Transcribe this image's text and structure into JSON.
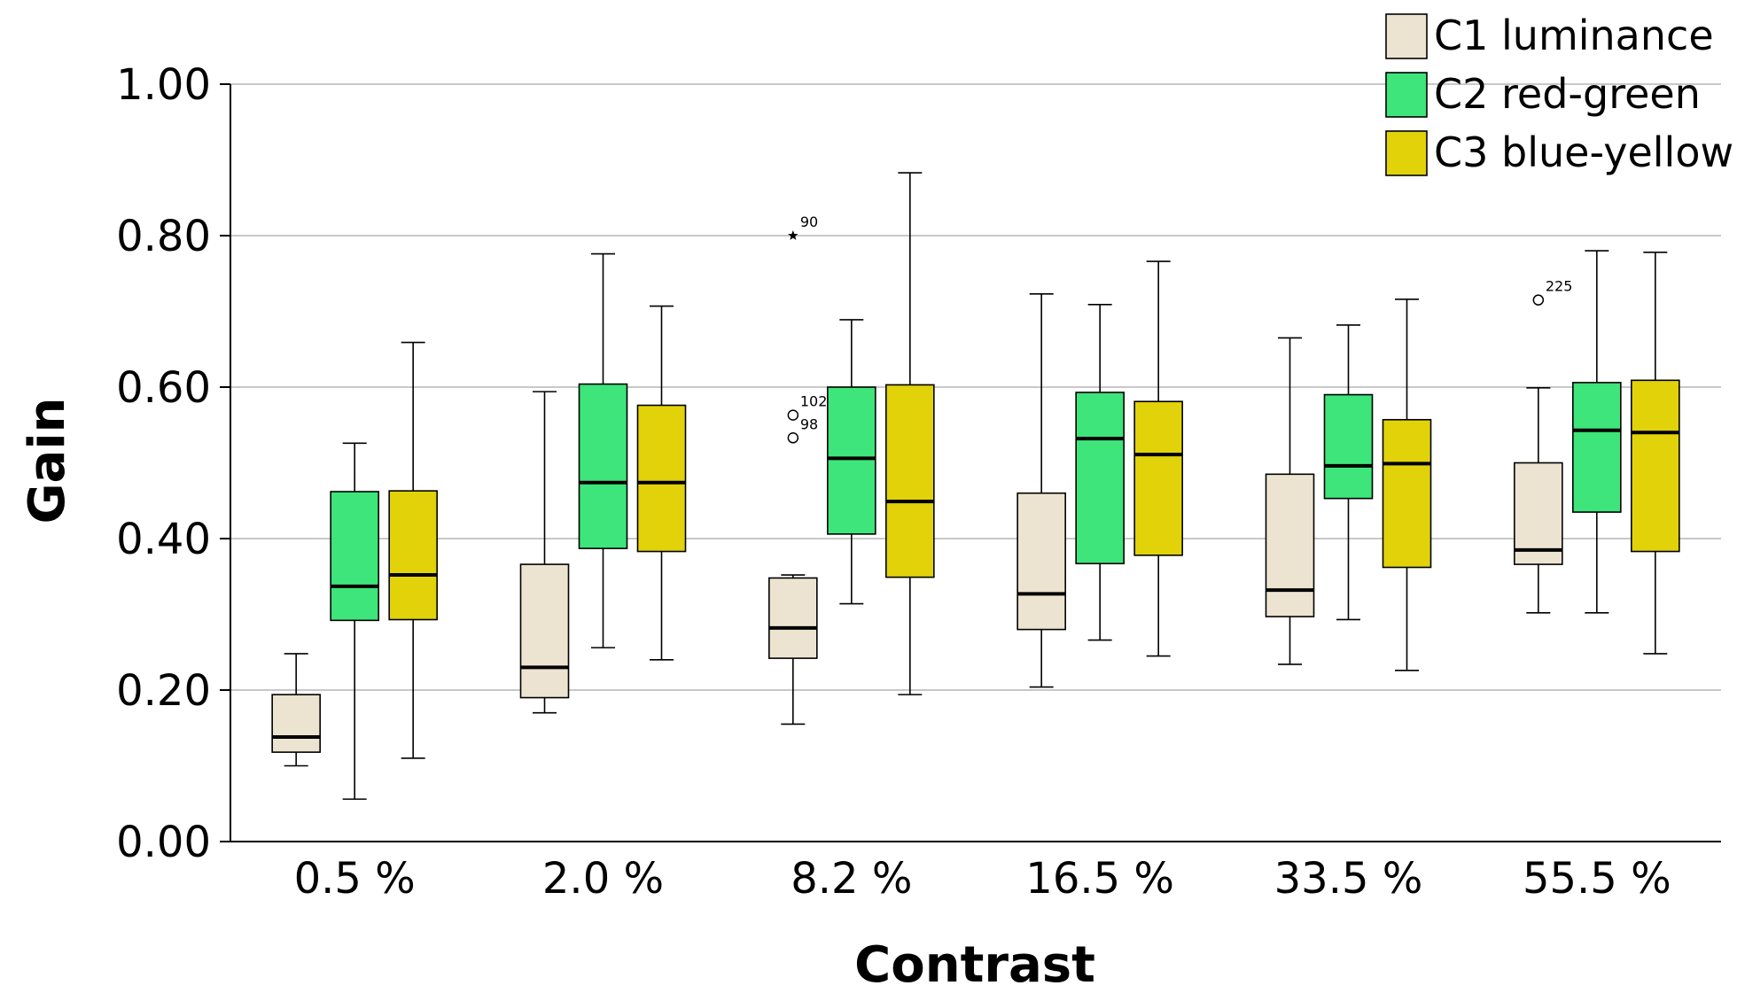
{
  "chart_data": {
    "type": "box",
    "xlabel": "Contrast",
    "ylabel": "Gain",
    "ylim": [
      0,
      1
    ],
    "yticks": [
      "0.00",
      "0.20",
      "0.40",
      "0.60",
      "0.80",
      "1.00"
    ],
    "grid": true,
    "legend_position": "top-right",
    "categories": [
      "0.5 %",
      "2.0 %",
      "8.2 %",
      "16.5 %",
      "33.5 %",
      "55.5 %"
    ],
    "series": [
      {
        "name": "C1 luminance",
        "color": "#ece4d1",
        "boxes": [
          {
            "min": 0.1,
            "q1": 0.118,
            "median": 0.138,
            "q3": 0.194,
            "max": 0.248
          },
          {
            "min": 0.17,
            "q1": 0.19,
            "median": 0.23,
            "q3": 0.366,
            "max": 0.594
          },
          {
            "min": 0.155,
            "q1": 0.242,
            "median": 0.282,
            "q3": 0.348,
            "max": 0.352
          },
          {
            "min": 0.204,
            "q1": 0.28,
            "median": 0.327,
            "q3": 0.46,
            "max": 0.723
          },
          {
            "min": 0.234,
            "q1": 0.297,
            "median": 0.332,
            "q3": 0.485,
            "max": 0.665
          },
          {
            "min": 0.302,
            "q1": 0.366,
            "median": 0.385,
            "q3": 0.5,
            "max": 0.599
          }
        ]
      },
      {
        "name": "C2 red-green",
        "color": "#3de57a",
        "boxes": [
          {
            "min": 0.056,
            "q1": 0.292,
            "median": 0.337,
            "q3": 0.462,
            "max": 0.526
          },
          {
            "min": 0.256,
            "q1": 0.387,
            "median": 0.474,
            "q3": 0.604,
            "max": 0.776
          },
          {
            "min": 0.314,
            "q1": 0.406,
            "median": 0.506,
            "q3": 0.6,
            "max": 0.689
          },
          {
            "min": 0.266,
            "q1": 0.367,
            "median": 0.532,
            "q3": 0.593,
            "max": 0.709
          },
          {
            "min": 0.293,
            "q1": 0.453,
            "median": 0.496,
            "q3": 0.59,
            "max": 0.682
          },
          {
            "min": 0.302,
            "q1": 0.435,
            "median": 0.543,
            "q3": 0.606,
            "max": 0.78
          }
        ]
      },
      {
        "name": "C3 blue-yellow",
        "color": "#e1d20a",
        "boxes": [
          {
            "min": 0.11,
            "q1": 0.293,
            "median": 0.352,
            "q3": 0.463,
            "max": 0.659
          },
          {
            "min": 0.24,
            "q1": 0.383,
            "median": 0.474,
            "q3": 0.576,
            "max": 0.707
          },
          {
            "min": 0.194,
            "q1": 0.349,
            "median": 0.449,
            "q3": 0.603,
            "max": 0.883
          },
          {
            "min": 0.245,
            "q1": 0.378,
            "median": 0.511,
            "q3": 0.581,
            "max": 0.766
          },
          {
            "min": 0.226,
            "q1": 0.362,
            "median": 0.499,
            "q3": 0.557,
            "max": 0.716
          },
          {
            "min": 0.248,
            "q1": 0.383,
            "median": 0.54,
            "q3": 0.609,
            "max": 0.778
          }
        ]
      }
    ],
    "outliers": [
      {
        "category": "8.2 %",
        "series": "C1 luminance",
        "value": 0.8,
        "label": "90",
        "marker": "star"
      },
      {
        "category": "8.2 %",
        "series": "C1 luminance",
        "value": 0.563,
        "label": "102",
        "marker": "circle"
      },
      {
        "category": "8.2 %",
        "series": "C1 luminance",
        "value": 0.533,
        "label": "98",
        "marker": "circle"
      },
      {
        "category": "55.5 %",
        "series": "C1 luminance",
        "value": 0.715,
        "label": "225",
        "marker": "circle"
      }
    ]
  }
}
